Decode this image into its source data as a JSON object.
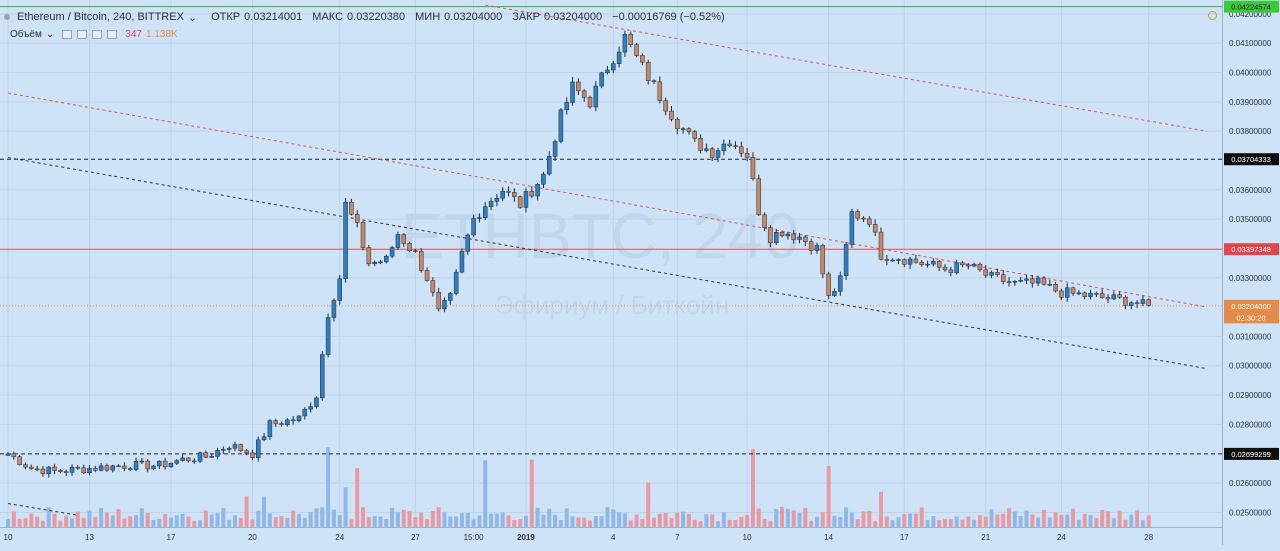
{
  "header": {
    "symbol": "Ethereum / Bitcoin, 240, BITTREX",
    "chevron": "⌄",
    "open_label": "ОТКР",
    "open_value": "0.03214001",
    "high_label": "МАКС",
    "high_value": "0.03220380",
    "low_label": "МИН",
    "low_value": "0.03204000",
    "close_label": "ЗАКР",
    "close_value": "0.03204000",
    "change": "−0.00016769 (−0.52%)"
  },
  "volume_legend": {
    "label": "Объём",
    "chevron": "⌄",
    "value_a": "347",
    "value_b": "1.138K"
  },
  "watermark": {
    "ticker": "ETHBTC, 240",
    "name": "Эфириум / Биткойн"
  },
  "colors": {
    "background": "#cfe3f8",
    "up": "#2f7fc0",
    "down": "#c98863",
    "vol_up": "#8fb7e8",
    "vol_down": "#e89aa2",
    "trend_red": "#d9534f",
    "trend_black": "#333333",
    "hline_red": "#d9534f",
    "hline_black": "#222222"
  },
  "icons": [
    "alert-clock-icon",
    "legend-dot-icon",
    "chevron-down-icon",
    "settings-mini-icon"
  ],
  "chart_data": {
    "type": "candlestick",
    "title": "",
    "ylim": [
      0.0245,
      0.0422
    ],
    "price_ticks": [
      "0.04200000",
      "0.04100000",
      "0.04000000",
      "0.03900000",
      "0.03800000",
      "0.03600000",
      "0.03500000",
      "0.03300000",
      "0.03100000",
      "0.03000000",
      "0.02900000",
      "0.02800000",
      "0.02600000",
      "0.02500000"
    ],
    "price_tick_values": [
      0.042,
      0.041,
      0.04,
      0.039,
      0.038,
      0.036,
      0.035,
      0.033,
      0.031,
      0.03,
      0.029,
      0.028,
      0.026,
      0.025
    ],
    "x_ticks": [
      "10",
      "13",
      "17",
      "20",
      "24",
      "27",
      "15:00",
      "2019",
      "4",
      "7",
      "10",
      "14",
      "17",
      "21",
      "24",
      "28"
    ],
    "x_tick_index": [
      0,
      14,
      28,
      42,
      57,
      70,
      80,
      89,
      104,
      115,
      127,
      141,
      154,
      168,
      181,
      196
    ],
    "price_labels": [
      {
        "text": "0.04224574",
        "value": 0.04224574,
        "style": "green"
      },
      {
        "text": "0.03704333",
        "value": 0.03704333,
        "style": "black"
      },
      {
        "text": "0.03397348",
        "value": 0.03397348,
        "style": "red"
      },
      {
        "text": "0.03204000",
        "value": 0.03204,
        "style": "orange"
      },
      {
        "text": "02:30:20",
        "value": 0.03165,
        "style": "orange-sub"
      },
      {
        "text": "0.02699299",
        "value": 0.02699299,
        "style": "black"
      }
    ],
    "horizontal_lines": [
      {
        "value": 0.04224574,
        "color": "#2eb82e",
        "dash": "none"
      },
      {
        "value": 0.03704333,
        "color": "#222222",
        "dash": "4,3"
      },
      {
        "value": 0.03397348,
        "color": "#d9534f",
        "dash": "none"
      },
      {
        "value": 0.03204,
        "color": "#e58b49",
        "dash": "1,2"
      },
      {
        "value": 0.02699299,
        "color": "#222222",
        "dash": "4,3"
      }
    ],
    "trend_lines": [
      {
        "x1": 82,
        "y1": 0.0423,
        "x2": 206,
        "y2": 0.038,
        "color": "#d9534f"
      },
      {
        "x1": 0,
        "y1": 0.0393,
        "x2": 206,
        "y2": 0.032,
        "color": "#d9534f"
      },
      {
        "x1": 0,
        "y1": 0.0371,
        "x2": 206,
        "y2": 0.0299,
        "color": "#333333"
      },
      {
        "x1": 0,
        "y1": 0.0253,
        "x2": 12,
        "y2": 0.0249,
        "color": "#333333"
      }
    ],
    "anchors": [
      [
        0,
        0.027
      ],
      [
        4,
        0.0265
      ],
      [
        8,
        0.0264
      ],
      [
        14,
        0.0265
      ],
      [
        20,
        0.0266
      ],
      [
        26,
        0.0266
      ],
      [
        30,
        0.0268
      ],
      [
        34,
        0.0269
      ],
      [
        38,
        0.0273
      ],
      [
        42,
        0.027
      ],
      [
        45,
        0.028
      ],
      [
        50,
        0.0282
      ],
      [
        53,
        0.029
      ],
      [
        55,
        0.0318
      ],
      [
        57,
        0.033
      ],
      [
        58,
        0.0355
      ],
      [
        60,
        0.0347
      ],
      [
        62,
        0.0335
      ],
      [
        65,
        0.0336
      ],
      [
        67,
        0.0345
      ],
      [
        70,
        0.0338
      ],
      [
        72,
        0.033
      ],
      [
        74,
        0.0318
      ],
      [
        76,
        0.0323
      ],
      [
        78,
        0.0338
      ],
      [
        80,
        0.035
      ],
      [
        82,
        0.0355
      ],
      [
        85,
        0.036
      ],
      [
        88,
        0.0355
      ],
      [
        92,
        0.0365
      ],
      [
        95,
        0.0385
      ],
      [
        97,
        0.0395
      ],
      [
        100,
        0.039
      ],
      [
        103,
        0.0402
      ],
      [
        106,
        0.0412
      ],
      [
        108,
        0.0405
      ],
      [
        112,
        0.0392
      ],
      [
        115,
        0.0383
      ],
      [
        118,
        0.0376
      ],
      [
        121,
        0.0373
      ],
      [
        124,
        0.0377
      ],
      [
        127,
        0.0372
      ],
      [
        129,
        0.0353
      ],
      [
        131,
        0.0344
      ],
      [
        133,
        0.0346
      ],
      [
        136,
        0.0344
      ],
      [
        139,
        0.034
      ],
      [
        141,
        0.0323
      ],
      [
        143,
        0.0329
      ],
      [
        145,
        0.0352
      ],
      [
        148,
        0.035
      ],
      [
        150,
        0.0338
      ],
      [
        153,
        0.0337
      ],
      [
        157,
        0.0335
      ],
      [
        161,
        0.0333
      ],
      [
        165,
        0.0334
      ],
      [
        169,
        0.033
      ],
      [
        173,
        0.0328
      ],
      [
        177,
        0.0328
      ],
      [
        181,
        0.0325
      ],
      [
        185,
        0.0324
      ],
      [
        189,
        0.0323
      ],
      [
        193,
        0.0322
      ],
      [
        196,
        0.032
      ]
    ],
    "candle_count": 197,
    "volume_ylim": [
      0,
      60
    ]
  }
}
